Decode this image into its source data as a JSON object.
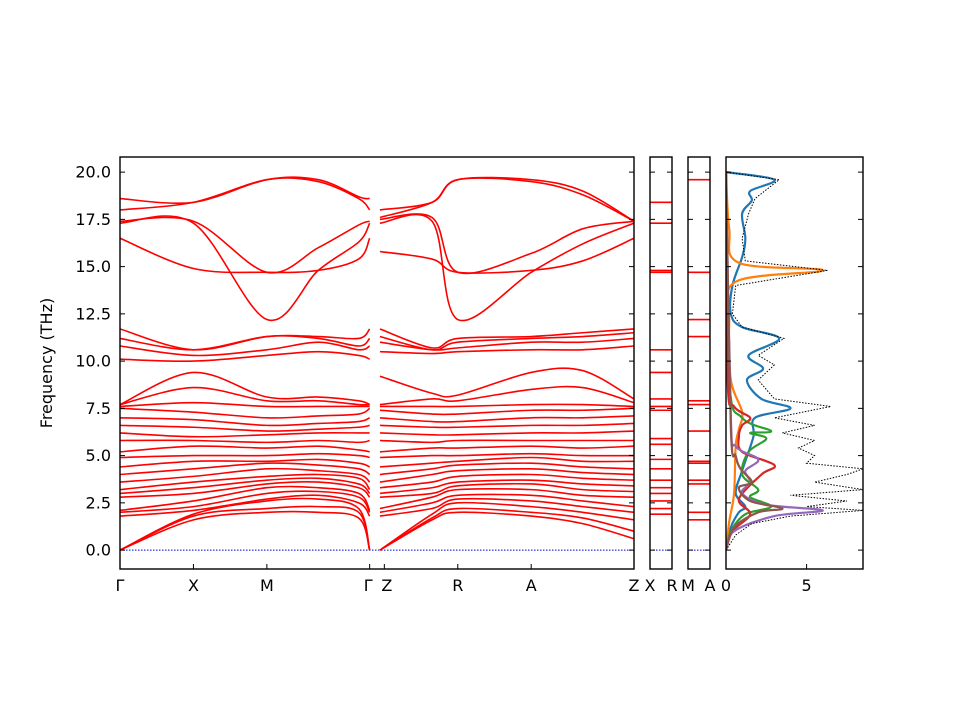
{
  "chart_data": {
    "type": "line",
    "title": "",
    "ylabel": "Frequency (THz)",
    "ylim": [
      -1.0,
      20.8
    ],
    "yticks": [
      0.0,
      2.5,
      5.0,
      7.5,
      10.0,
      12.5,
      15.0,
      17.5,
      20.0
    ],
    "ytick_labels": [
      "0.0",
      "2.5",
      "5.0",
      "7.5",
      "10.0",
      "12.5",
      "15.0",
      "17.5",
      "20.0"
    ],
    "band_color": "#ff0000",
    "zero_line_color": "#0000cc",
    "panels": [
      {
        "id": "main",
        "xlim": [
          0,
          7
        ],
        "tick_labels": [
          "Γ",
          "X",
          "M",
          "Γ",
          "Z",
          "R",
          "A",
          "Z"
        ],
        "tick_positions": [
          0,
          1,
          2,
          3.4,
          3.6,
          4.6,
          5.6,
          7
        ],
        "break_at": 3.5,
        "bands_segment_1": [
          [
            0.0,
            1.6,
            2.0,
            2.0,
            1.7,
            0.0
          ],
          [
            0.0,
            1.8,
            2.2,
            2.3,
            2.0,
            0.0
          ],
          [
            0.0,
            1.9,
            2.6,
            2.7,
            2.2,
            0.0
          ],
          [
            1.8,
            2.1,
            2.7,
            2.9,
            2.5,
            1.8
          ],
          [
            2.0,
            2.3,
            3.0,
            3.1,
            2.8,
            2.0
          ],
          [
            2.1,
            2.6,
            3.3,
            3.3,
            3.0,
            2.1
          ],
          [
            2.8,
            3.0,
            3.5,
            3.6,
            3.3,
            2.8
          ],
          [
            3.0,
            3.3,
            3.7,
            3.8,
            3.5,
            3.0
          ],
          [
            3.2,
            3.6,
            3.9,
            4.0,
            3.8,
            3.2
          ],
          [
            3.6,
            3.9,
            4.3,
            4.2,
            4.0,
            3.6
          ],
          [
            4.0,
            4.3,
            4.6,
            4.5,
            4.3,
            4.0
          ],
          [
            4.4,
            4.7,
            4.7,
            4.8,
            4.6,
            4.4
          ],
          [
            4.9,
            5.0,
            5.0,
            5.1,
            5.0,
            4.9
          ],
          [
            5.2,
            5.5,
            5.4,
            5.5,
            5.3,
            5.2
          ],
          [
            5.8,
            5.8,
            5.7,
            5.8,
            5.7,
            5.8
          ],
          [
            6.2,
            6.0,
            6.1,
            6.2,
            6.2,
            6.2
          ],
          [
            6.6,
            6.5,
            6.3,
            6.4,
            6.5,
            6.6
          ],
          [
            7.0,
            6.9,
            6.6,
            6.7,
            6.8,
            7.0
          ],
          [
            7.5,
            7.3,
            7.0,
            7.1,
            7.2,
            7.5
          ],
          [
            7.6,
            7.8,
            7.6,
            7.6,
            7.6,
            7.6
          ],
          [
            7.7,
            8.6,
            7.9,
            7.9,
            7.7,
            7.7
          ],
          [
            7.7,
            9.4,
            8.1,
            8.1,
            7.9,
            7.7
          ],
          [
            10.1,
            10.0,
            10.3,
            10.5,
            10.3,
            10.1
          ],
          [
            10.8,
            10.3,
            10.6,
            11.0,
            10.6,
            10.8
          ],
          [
            11.2,
            10.6,
            11.3,
            11.2,
            10.8,
            11.2
          ],
          [
            11.7,
            10.6,
            11.3,
            11.3,
            11.2,
            11.7
          ],
          [
            16.5,
            14.9,
            14.7,
            14.8,
            15.4,
            16.5
          ],
          [
            17.3,
            17.3,
            12.2,
            14.8,
            16.3,
            17.3
          ],
          [
            17.4,
            17.4,
            14.7,
            16.0,
            17.2,
            17.4
          ],
          [
            18.0,
            18.4,
            19.6,
            19.5,
            18.6,
            18.0
          ],
          [
            18.6,
            18.4,
            19.6,
            19.6,
            18.7,
            18.6
          ]
        ],
        "bands_segment_2": [
          [
            0.0,
            1.6,
            2.0,
            1.8,
            1.4,
            0.6
          ],
          [
            0.0,
            1.7,
            2.2,
            2.0,
            1.7,
            1.0
          ],
          [
            0.0,
            1.9,
            2.5,
            2.3,
            2.0,
            1.6
          ],
          [
            1.8,
            2.2,
            2.7,
            2.6,
            2.3,
            2.0
          ],
          [
            2.0,
            2.5,
            2.9,
            2.9,
            2.6,
            2.3
          ],
          [
            2.2,
            2.8,
            3.2,
            3.2,
            2.9,
            2.8
          ],
          [
            2.8,
            3.0,
            3.4,
            3.5,
            3.2,
            3.1
          ],
          [
            3.0,
            3.3,
            3.6,
            3.7,
            3.5,
            3.4
          ],
          [
            3.3,
            3.6,
            3.9,
            4.0,
            3.8,
            3.7
          ],
          [
            3.6,
            4.0,
            4.2,
            4.3,
            4.1,
            4.0
          ],
          [
            4.0,
            4.3,
            4.5,
            4.6,
            4.4,
            4.3
          ],
          [
            4.4,
            4.6,
            4.7,
            4.9,
            4.7,
            4.7
          ],
          [
            4.9,
            5.0,
            5.0,
            5.1,
            5.0,
            5.0
          ],
          [
            5.2,
            5.4,
            5.4,
            5.5,
            5.4,
            5.5
          ],
          [
            5.8,
            5.7,
            5.8,
            5.8,
            5.8,
            5.8
          ],
          [
            6.2,
            6.1,
            6.1,
            6.2,
            6.2,
            6.3
          ],
          [
            6.6,
            6.5,
            6.5,
            6.6,
            6.6,
            6.7
          ],
          [
            7.0,
            6.8,
            6.8,
            7.0,
            7.0,
            7.1
          ],
          [
            7.4,
            7.2,
            7.2,
            7.4,
            7.4,
            7.5
          ],
          [
            7.6,
            7.6,
            7.6,
            7.7,
            7.7,
            7.6
          ],
          [
            7.7,
            8.0,
            7.9,
            8.5,
            8.6,
            7.8
          ],
          [
            9.2,
            8.3,
            8.2,
            9.4,
            9.5,
            8.0
          ],
          [
            10.5,
            10.4,
            10.5,
            10.6,
            10.6,
            10.8
          ],
          [
            11.0,
            10.6,
            10.7,
            11.0,
            11.0,
            11.2
          ],
          [
            11.3,
            10.6,
            11.0,
            11.2,
            11.3,
            11.5
          ],
          [
            11.7,
            10.7,
            11.2,
            11.3,
            11.5,
            11.7
          ],
          [
            15.8,
            15.4,
            14.7,
            14.8,
            15.3,
            16.5
          ],
          [
            17.3,
            17.4,
            12.2,
            14.7,
            16.2,
            17.3
          ],
          [
            17.5,
            17.6,
            14.7,
            15.7,
            17.0,
            17.4
          ],
          [
            17.6,
            18.4,
            19.6,
            19.5,
            18.8,
            17.4
          ],
          [
            18.0,
            18.4,
            19.6,
            19.6,
            19.0,
            17.4
          ]
        ]
      },
      {
        "id": "x-r",
        "tick_labels": [
          "X",
          "R"
        ],
        "levels": [
          1.9,
          2.2,
          2.6,
          3.0,
          3.3,
          3.7,
          4.3,
          4.8,
          5.6,
          5.9,
          7.4,
          7.6,
          8.0,
          9.4,
          10.6,
          14.7,
          14.8,
          17.3,
          18.4
        ]
      },
      {
        "id": "m-a",
        "tick_labels": [
          "M",
          "A"
        ],
        "levels": [
          1.6,
          2.0,
          3.5,
          3.7,
          4.6,
          4.7,
          6.3,
          7.7,
          7.9,
          11.3,
          12.2,
          14.7,
          19.6
        ]
      },
      {
        "id": "dos",
        "xlim": [
          0,
          8.5
        ],
        "xticks": [
          0,
          5
        ],
        "xtick_labels": [
          "0",
          "5"
        ],
        "total_color": "#000000",
        "series": [
          {
            "color": "#1f77b4",
            "points": [
              [
                0,
                0.0
              ],
              [
                0.3,
                1.2
              ],
              [
                0.8,
                2.0
              ],
              [
                1.2,
                2.3
              ],
              [
                0.6,
                3.0
              ],
              [
                1.0,
                4.2
              ],
              [
                1.7,
                6.0
              ],
              [
                1.8,
                7.0
              ],
              [
                4.0,
                7.5
              ],
              [
                2.2,
                8.0
              ],
              [
                1.3,
                9.0
              ],
              [
                2.3,
                9.6
              ],
              [
                1.4,
                10.3
              ],
              [
                3.3,
                11.2
              ],
              [
                1.0,
                11.8
              ],
              [
                0.3,
                12.5
              ],
              [
                0.4,
                14.0
              ],
              [
                1.0,
                15.5
              ],
              [
                1.2,
                16.5
              ],
              [
                1.0,
                17.8
              ],
              [
                1.6,
                18.5
              ],
              [
                1.5,
                19.0
              ],
              [
                3.0,
                19.6
              ],
              [
                0,
                20.0
              ]
            ]
          },
          {
            "color": "#ff7f0e",
            "points": [
              [
                0,
                0.0
              ],
              [
                0.2,
                1.5
              ],
              [
                0.5,
                3.0
              ],
              [
                0.6,
                5.5
              ],
              [
                0.8,
                6.4
              ],
              [
                1.0,
                7.3
              ],
              [
                0.3,
                9.0
              ],
              [
                0.2,
                12.0
              ],
              [
                0.6,
                14.2
              ],
              [
                6.0,
                14.8
              ],
              [
                0.8,
                15.2
              ],
              [
                0.2,
                17.0
              ],
              [
                0,
                20.0
              ]
            ]
          },
          {
            "color": "#2ca02c",
            "points": [
              [
                0,
                0.0
              ],
              [
                0.3,
                1.0
              ],
              [
                1.2,
                1.9
              ],
              [
                2.8,
                2.3
              ],
              [
                1.5,
                2.8
              ],
              [
                2.0,
                3.2
              ],
              [
                1.0,
                4.0
              ],
              [
                1.4,
                5.2
              ],
              [
                2.5,
                5.9
              ],
              [
                1.5,
                6.2
              ],
              [
                2.8,
                6.3
              ],
              [
                1.0,
                7.0
              ],
              [
                0.2,
                9.0
              ],
              [
                0,
                20.0
              ]
            ]
          },
          {
            "color": "#d62728",
            "points": [
              [
                0,
                0.0
              ],
              [
                0.4,
                1.0
              ],
              [
                1.5,
                1.9
              ],
              [
                0.8,
                2.7
              ],
              [
                2.2,
                4.0
              ],
              [
                3.0,
                4.5
              ],
              [
                1.0,
                5.2
              ],
              [
                0.8,
                6.0
              ],
              [
                1.0,
                6.6
              ],
              [
                1.5,
                7.0
              ],
              [
                0.5,
                7.6
              ],
              [
                0.1,
                9.0
              ],
              [
                0,
                20.0
              ]
            ]
          },
          {
            "color": "#9467bd",
            "points": [
              [
                0,
                0.0
              ],
              [
                0.5,
                1.0
              ],
              [
                3.0,
                1.8
              ],
              [
                6.0,
                2.1
              ],
              [
                2.5,
                2.4
              ],
              [
                1.0,
                3.0
              ],
              [
                1.5,
                3.6
              ],
              [
                1.2,
                4.2
              ],
              [
                2.0,
                4.8
              ],
              [
                0.6,
                5.5
              ],
              [
                0.3,
                7.0
              ],
              [
                0,
                20.0
              ]
            ]
          },
          {
            "color": "#8c564b",
            "points": [
              [
                0,
                0.0
              ],
              [
                0.5,
                1.2
              ],
              [
                2.0,
                2.0
              ],
              [
                3.5,
                2.2
              ],
              [
                1.5,
                2.6
              ],
              [
                0.8,
                3.3
              ],
              [
                1.6,
                3.6
              ],
              [
                0.9,
                4.3
              ],
              [
                0.6,
                5.0
              ],
              [
                0.3,
                6.5
              ],
              [
                0,
                20.0
              ]
            ]
          }
        ],
        "total": [
          [
            0,
            0.0
          ],
          [
            0.6,
            0.8
          ],
          [
            1.6,
            1.4
          ],
          [
            4.0,
            1.8
          ],
          [
            8.5,
            2.1
          ],
          [
            5.0,
            2.3
          ],
          [
            7.5,
            2.6
          ],
          [
            4.0,
            2.9
          ],
          [
            8.5,
            3.2
          ],
          [
            5.5,
            3.6
          ],
          [
            7.5,
            4.0
          ],
          [
            8.5,
            4.3
          ],
          [
            5.0,
            4.6
          ],
          [
            5.5,
            5.0
          ],
          [
            4.5,
            5.4
          ],
          [
            5.5,
            5.8
          ],
          [
            3.5,
            6.2
          ],
          [
            5.5,
            6.6
          ],
          [
            3.0,
            7.0
          ],
          [
            6.5,
            7.6
          ],
          [
            3.0,
            8.0
          ],
          [
            2.0,
            9.0
          ],
          [
            3.0,
            9.8
          ],
          [
            2.0,
            10.3
          ],
          [
            3.6,
            11.2
          ],
          [
            1.0,
            11.8
          ],
          [
            0.4,
            12.5
          ],
          [
            0.6,
            14.0
          ],
          [
            6.3,
            14.8
          ],
          [
            1.2,
            15.3
          ],
          [
            1.0,
            16.5
          ],
          [
            1.4,
            17.8
          ],
          [
            1.8,
            18.6
          ],
          [
            3.3,
            19.6
          ],
          [
            0,
            20.0
          ]
        ]
      }
    ]
  }
}
